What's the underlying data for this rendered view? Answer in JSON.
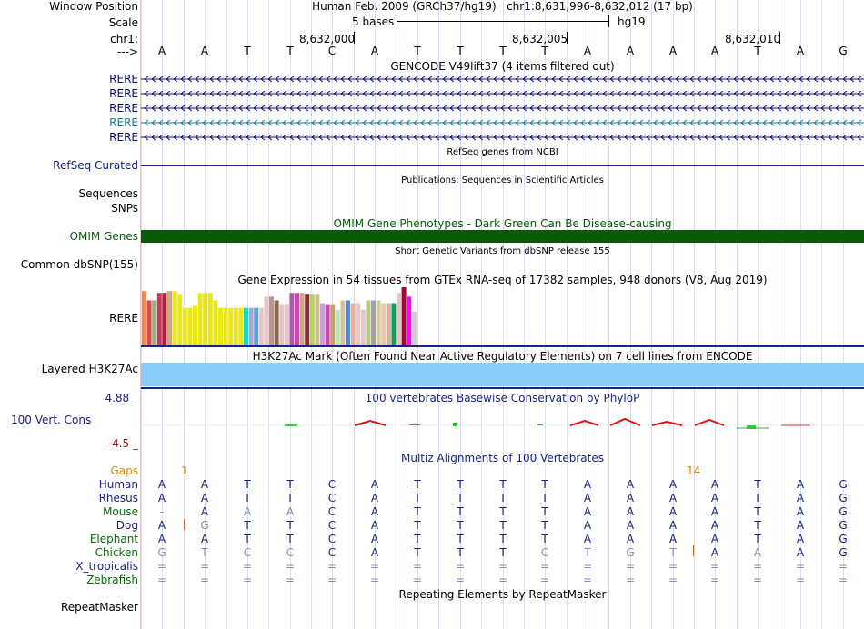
{
  "position": {
    "window_label": "Window Position",
    "scale_label": "Scale",
    "chrom_label": "chr1:",
    "strand_label": "--->",
    "assembly_text": "Human Feb. 2009 (GRCh37/hg19)",
    "range_text": "chr1:8,631,996-8,632,012 (17 bp)",
    "scale_text": "5 bases",
    "db_text": "hg19",
    "ticks": [
      "8,632,000",
      "8,632,005",
      "8,632,010"
    ]
  },
  "bases": [
    "A",
    "A",
    "T",
    "T",
    "C",
    "A",
    "T",
    "T",
    "T",
    "T",
    "A",
    "A",
    "A",
    "A",
    "T",
    "A",
    "G"
  ],
  "gencode": {
    "title": "GENCODE V49lift37 (4 items filtered out)",
    "items": [
      {
        "label": "RERE",
        "color": "#0c0c78"
      },
      {
        "label": "RERE",
        "color": "#0c0c78"
      },
      {
        "label": "RERE",
        "color": "#0c0c78"
      },
      {
        "label": "RERE",
        "color": "#1a7a9a"
      },
      {
        "label": "RERE",
        "color": "#0c0c78"
      }
    ]
  },
  "refseq": {
    "title": "RefSeq genes from NCBI",
    "label": "RefSeq Curated"
  },
  "publications": {
    "title": "Publications: Sequences in Scientific Articles",
    "label1": "Sequences",
    "label2": "SNPs"
  },
  "omim": {
    "title": "OMIM Gene Phenotypes - Dark Green Can Be Disease-causing",
    "label": "OMIM Genes",
    "color": "#0a5a0a"
  },
  "dbsnp": {
    "title": "Short Genetic Variants from dbSNP release 155",
    "label": "Common dbSNP(155)"
  },
  "gtex": {
    "title": "Gene Expression in 54 tissues from GTEx RNA-seq of 17382 samples, 948 donors (V8, Aug 2019)",
    "label": "RERE",
    "bar_values": [
      58,
      48,
      48,
      56,
      56,
      58,
      58,
      55,
      40,
      40,
      42,
      56,
      56,
      56,
      48,
      40,
      40,
      40,
      40,
      40,
      40,
      40,
      40,
      40,
      52,
      52,
      48,
      44,
      44,
      56,
      56,
      56,
      55,
      55,
      55,
      45,
      44,
      44,
      38,
      48,
      48,
      45,
      45,
      38,
      48,
      48,
      48,
      45,
      45,
      45,
      56,
      62,
      52,
      36
    ],
    "bar_colors": [
      "#e88a59",
      "#d44c4c",
      "#8bb676",
      "#c8385f",
      "#b51e34",
      "#c8a886",
      "#e8e81c",
      "#e8e81c",
      "#e8e81c",
      "#e8e81c",
      "#e8e81c",
      "#e8e81c",
      "#e8e81c",
      "#e8e81c",
      "#e8e81c",
      "#e8e81c",
      "#e8e81c",
      "#e8e81c",
      "#e8e81c",
      "#e8e81c",
      "#1ad6c6",
      "#a8a8d6",
      "#5ea0dc",
      "#e8c6c6",
      "#e6c6c6",
      "#b49898",
      "#8a6a4a",
      "#e0c4c4",
      "#e0c4c4",
      "#ae5aa6",
      "#c84ab0",
      "#caa882",
      "#8a2a3a",
      "#b0d65e",
      "#ccc08a",
      "#c8a0d6",
      "#c84ab0",
      "#c8a06a",
      "#b8e8b8",
      "#d6c4a0",
      "#5a8ad0",
      "#e8b0a0",
      "#e8c6c6",
      "#e6c6c6",
      "#b4c884",
      "#a0a0a0",
      "#cfcf9e",
      "#ecc6b0",
      "#cdb4a0",
      "#1a9a5a",
      "#e2c6c6",
      "#a00a3a",
      "#ff00ff",
      "#ccc"
    ]
  },
  "h3k27ac": {
    "title": "H3K27Ac Mark (Often Found Near Active Regulatory Elements) on 7 cell lines from ENCODE",
    "label": "Layered H3K27Ac",
    "color": "#87cefa"
  },
  "phylop": {
    "title": "100 vertebrates Basewise Conservation by PhyloP",
    "label": "100 Vert. Cons",
    "max": "4.88 _",
    "min": "-4.5 _",
    "max_color": "#1a237e",
    "min_color": "#8b1a1a"
  },
  "multiz": {
    "title": "Multiz Alignments of 100 Vertebrates",
    "gaps_label": "Gaps",
    "gap_marks": [
      "1",
      "14"
    ],
    "gaps_color": "#e08a00",
    "species": [
      {
        "name": "Human",
        "color": "#1a237e",
        "seq": [
          "A",
          "A",
          "T",
          "T",
          "C",
          "A",
          "T",
          "T",
          "T",
          "T",
          "A",
          "A",
          "A",
          "A",
          "T",
          "A",
          "G"
        ]
      },
      {
        "name": "Rhesus",
        "color": "#1a237e",
        "seq": [
          "A",
          "A",
          "T",
          "T",
          "C",
          "A",
          "T",
          "T",
          "T",
          "T",
          "A",
          "A",
          "A",
          "A",
          "T",
          "A",
          "G"
        ]
      },
      {
        "name": "Mouse",
        "color": "#0a6a0a",
        "seq": [
          "-",
          "A",
          "A",
          "A",
          "C",
          "A",
          "T",
          "T",
          "T",
          "T",
          "A",
          "A",
          "A",
          "A",
          "T",
          "A",
          "G"
        ]
      },
      {
        "name": "Dog",
        "color": "#1a237e",
        "seq": [
          "A",
          "G",
          "T",
          "T",
          "C",
          "A",
          "T",
          "T",
          "T",
          "T",
          "A",
          "A",
          "A",
          "A",
          "T",
          "A",
          "G"
        ]
      },
      {
        "name": "Elephant",
        "color": "#0a6a0a",
        "seq": [
          "A",
          "A",
          "T",
          "T",
          "C",
          "A",
          "T",
          "T",
          "T",
          "T",
          "A",
          "A",
          "A",
          "A",
          "T",
          "A",
          "G"
        ]
      },
      {
        "name": "Chicken",
        "color": "#0a6a0a",
        "seq": [
          "G",
          "T",
          "C",
          "C",
          "C",
          "A",
          "T",
          "T",
          "T",
          "C",
          "T",
          "G",
          "T",
          "A",
          "A",
          "A",
          "G"
        ]
      },
      {
        "name": "X_tropicalis",
        "color": "#1a237e",
        "seq": [
          "=",
          "=",
          "=",
          "=",
          "=",
          "=",
          "=",
          "=",
          "=",
          "=",
          "=",
          "=",
          "=",
          "=",
          "=",
          "=",
          "="
        ]
      },
      {
        "name": "Zebrafish",
        "color": "#0a6a0a",
        "seq": [
          "=",
          "=",
          "=",
          "=",
          "=",
          "=",
          "=",
          "=",
          "=",
          "=",
          "=",
          "=",
          "=",
          "=",
          "=",
          "=",
          "="
        ]
      }
    ]
  },
  "repeatmasker": {
    "title": "Repeating Elements by RepeatMasker",
    "label": "RepeatMasker"
  }
}
